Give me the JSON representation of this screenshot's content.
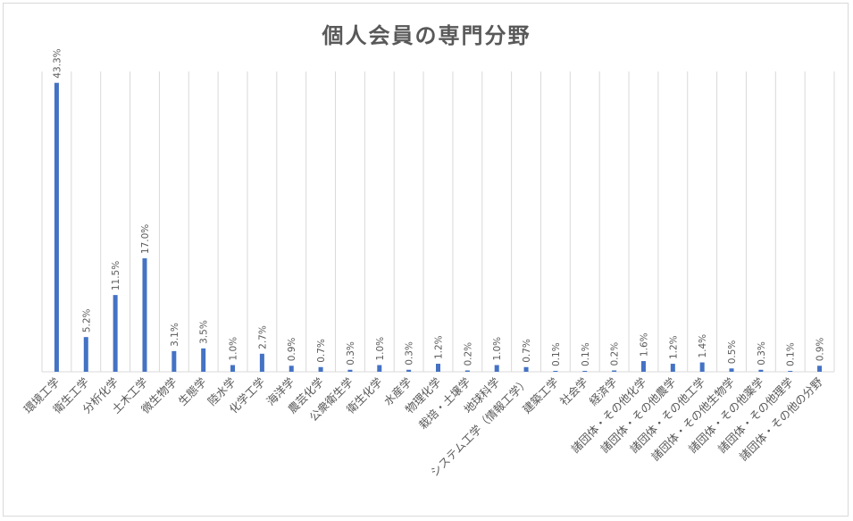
{
  "chart_data": {
    "type": "bar",
    "title": "個人会員の専門分野",
    "categories": [
      "環境工学",
      "衛生工学",
      "分析化学",
      "土木工学",
      "微生物学",
      "生態学",
      "陸水学",
      "化学工学",
      "海洋学",
      "農芸化学",
      "公衆衛生学",
      "衛生化学",
      "水産学",
      "物理化学",
      "栽培・土壌学",
      "地球科学",
      "システム工学（情報工学）",
      "建築工学",
      "社会学",
      "経済学",
      "諸団体・その他化学",
      "諸団体・その他農学",
      "諸団体・その他工学",
      "諸団体・その他生物学",
      "諸団体・その他薬学",
      "諸団体・その他理学",
      "諸団体・その他の分野"
    ],
    "values": [
      43.3,
      5.2,
      11.5,
      17.0,
      3.1,
      3.5,
      1.0,
      2.7,
      0.9,
      0.7,
      0.3,
      1.0,
      0.3,
      1.2,
      0.2,
      1.0,
      0.7,
      0.1,
      0.1,
      0.2,
      1.6,
      1.2,
      1.4,
      0.5,
      0.3,
      0.1,
      0.9
    ],
    "data_labels": [
      "43.3%",
      "5.2%",
      "11.5%",
      "17.0%",
      "3.1%",
      "3.5%",
      "1.0%",
      "2.7%",
      "0.9%",
      "0.7%",
      "0.3%",
      "1.0%",
      "0.3%",
      "1.2%",
      "0.2%",
      "1.0%",
      "0.7%",
      "0.1%",
      "0.1%",
      "0.2%",
      "1.6%",
      "1.2%",
      "1.4%",
      "0.5%",
      "0.3%",
      "0.1%",
      "0.9%"
    ],
    "ylim": [
      0,
      45
    ],
    "grid": "vertical",
    "bar_color": "#4472c4"
  }
}
